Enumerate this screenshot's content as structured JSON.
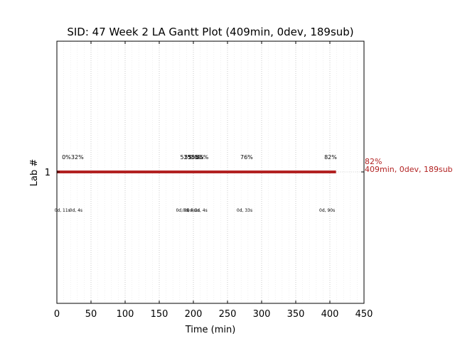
{
  "chart_data": {
    "type": "gantt",
    "title": "SID: 47 Week 2 LA Gantt Plot (409min, 0dev, 189sub)",
    "xlabel": "Time (min)",
    "ylabel": "Lab #",
    "xlim": [
      0,
      450
    ],
    "xticks": [
      "0",
      "50",
      "100",
      "150",
      "200",
      "250",
      "300",
      "350",
      "400",
      "450"
    ],
    "xtick_values": [
      0,
      50,
      100,
      150,
      200,
      250,
      300,
      350,
      400,
      450
    ],
    "yticks": [
      "1"
    ],
    "grid": true,
    "bar_color": "#b22222",
    "bars": [
      {
        "lab": 1,
        "start": 0,
        "end": 409
      }
    ],
    "progress_labels": [
      {
        "x": 14,
        "text": "0%"
      },
      {
        "x": 30,
        "text": "32%"
      },
      {
        "x": 190,
        "text": "52%"
      },
      {
        "x": 196,
        "text": "53%"
      },
      {
        "x": 201,
        "text": "55%"
      },
      {
        "x": 206,
        "text": "55%"
      },
      {
        "x": 213,
        "text": "55%"
      },
      {
        "x": 278,
        "text": "76%"
      },
      {
        "x": 401,
        "text": "82%"
      }
    ],
    "submission_labels": [
      {
        "x": 8,
        "text": "0d, 11s"
      },
      {
        "x": 28,
        "text": "0d, 4s"
      },
      {
        "x": 184,
        "text": "0d, 0s"
      },
      {
        "x": 194,
        "text": "0d, 4s"
      },
      {
        "x": 200,
        "text": "0d, 1s"
      },
      {
        "x": 211,
        "text": "0d, 4s"
      },
      {
        "x": 275,
        "text": "0d, 33s"
      },
      {
        "x": 396,
        "text": "0d, 90s"
      }
    ],
    "summary": {
      "percent": "82%",
      "detail": "409min, 0dev, 189sub"
    }
  }
}
